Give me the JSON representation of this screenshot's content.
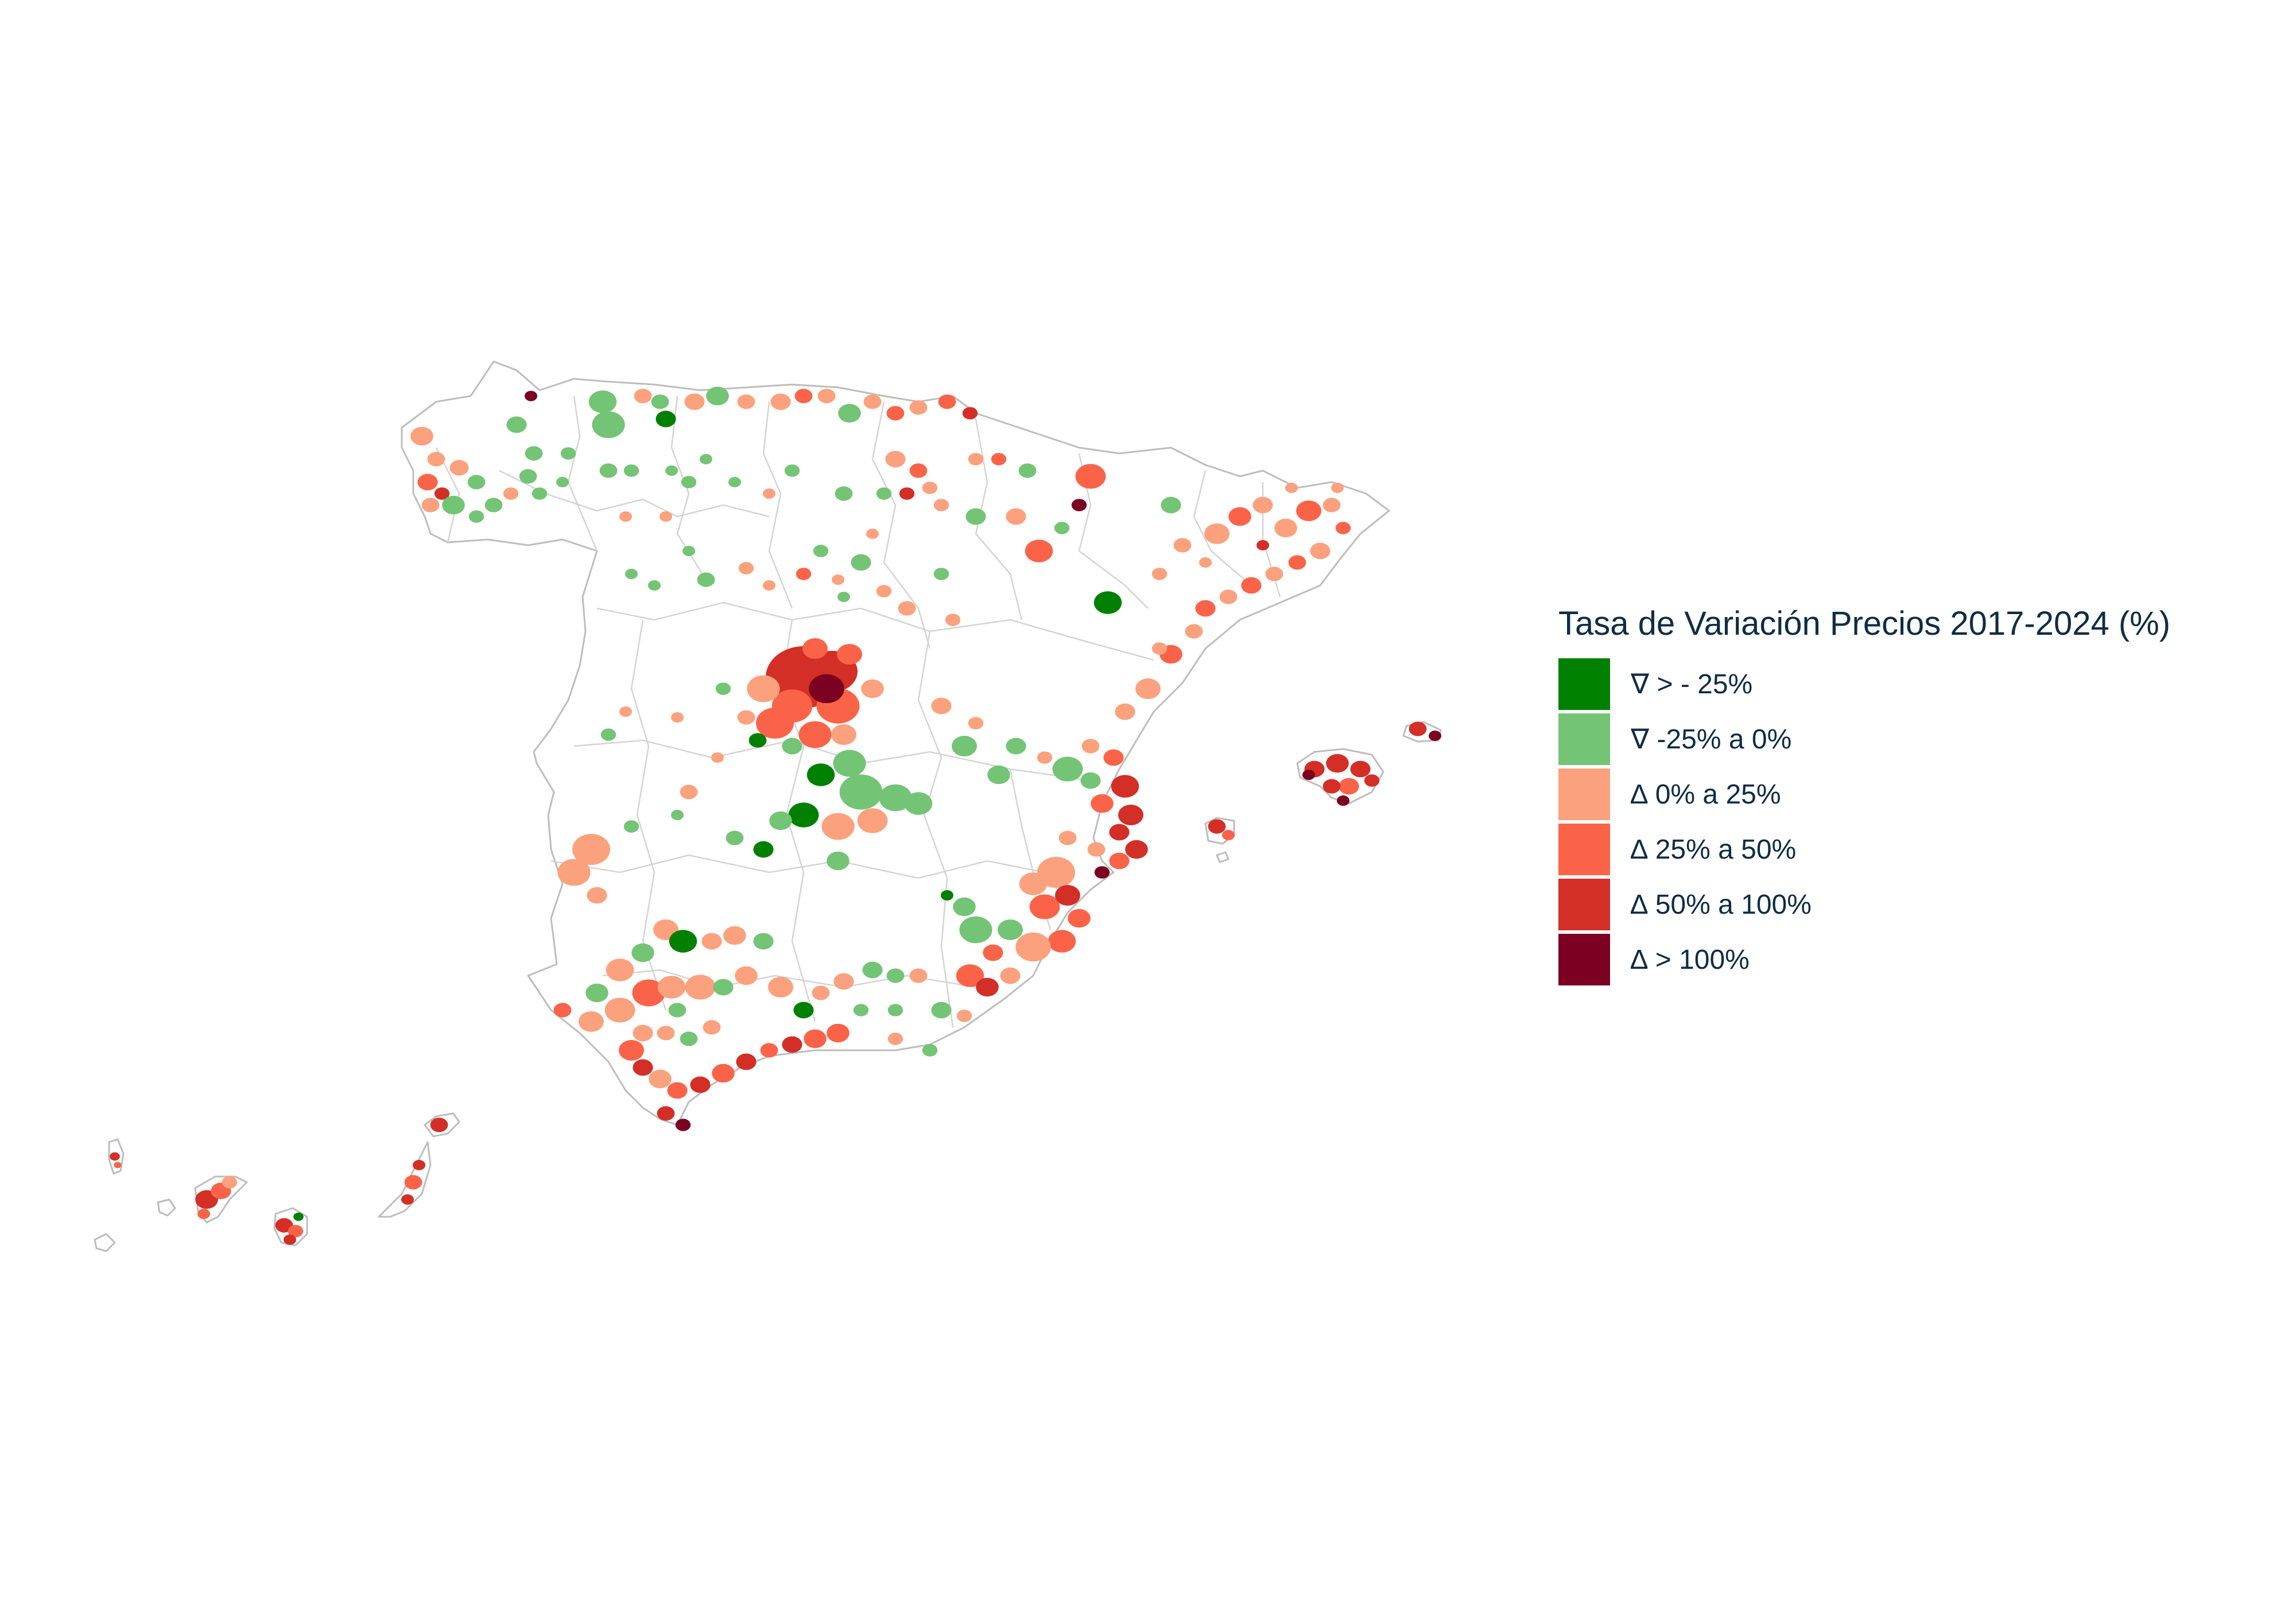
{
  "legend": {
    "title": "Tasa de Variación Precios 2017-2024 (%)",
    "items": [
      {
        "label": "∇ > - 25%",
        "color": "#008000"
      },
      {
        "label": "∇ -25% a 0%",
        "color": "#74c476"
      },
      {
        "label": "∆ 0% a 25%",
        "color": "#fca17d"
      },
      {
        "label": "∆ 25% a 50%",
        "color": "#fb6348"
      },
      {
        "label": "∆ 50% a 100%",
        "color": "#d32f27"
      },
      {
        "label": "∆ > 100%",
        "color": "#7b0021"
      }
    ]
  },
  "map": {
    "subject": "Spain municipalities choropleth (Peninsula, Balearic and Canary Islands)",
    "border_color": "#bdbdbd",
    "background": "#ffffff"
  }
}
